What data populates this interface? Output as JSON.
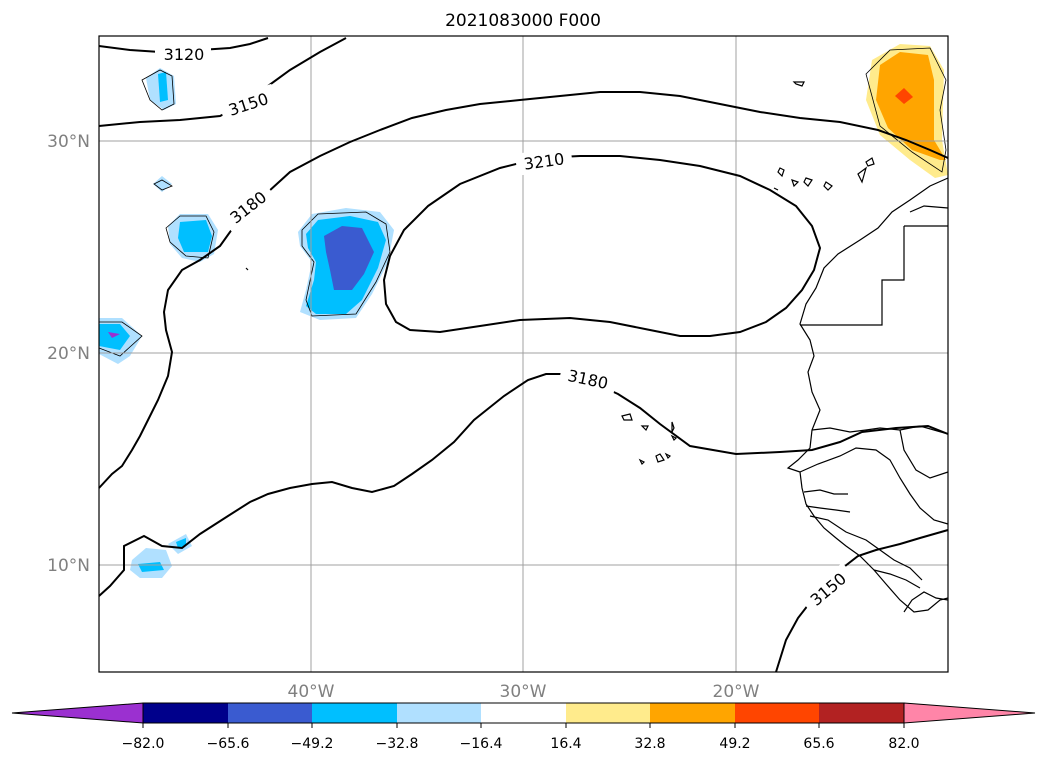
{
  "title": "2021083000 F000",
  "lat_labels": [
    "30°N",
    "20°N",
    "10°N"
  ],
  "lon_labels": [
    "40°W",
    "30°W",
    "20°W"
  ],
  "contour_labels": [
    "3120",
    "3150",
    "3180",
    "3210",
    "3180",
    "3150"
  ],
  "colorbar": {
    "ticks": [
      "−82.0",
      "−65.6",
      "−49.2",
      "−32.8",
      "−16.4",
      "16.4",
      "32.8",
      "49.2",
      "65.6",
      "82.0"
    ],
    "colors": [
      "#9b30d0",
      "#00008b",
      "#3a5bd0",
      "#00bfff",
      "#b0e0ff",
      "#ffffff",
      "#ffeb8c",
      "#ffa500",
      "#ff4500",
      "#b22222",
      "#ff85a8"
    ]
  },
  "colors": {
    "coast": "#000000",
    "grid": "#a0a0a0",
    "contour": "#000000",
    "pale_blue": "#b0e0ff",
    "deep_sky": "#00bfff",
    "royal": "#3a5bd0",
    "violet": "#9b30d0",
    "yellow": "#ffeb8c",
    "orange": "#ffa500",
    "red_orange": "#ff4500"
  }
}
